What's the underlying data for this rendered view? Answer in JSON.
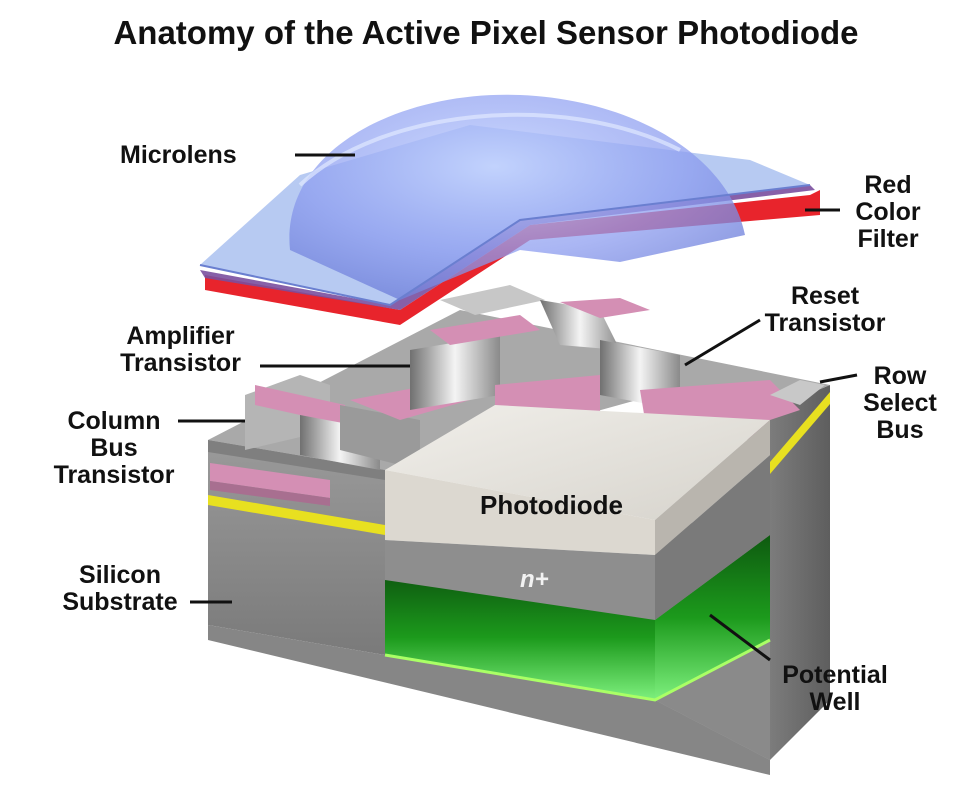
{
  "title": "Anatomy of the Active Pixel Sensor Photodiode",
  "labels": {
    "microlens": [
      "Microlens"
    ],
    "red_filter": [
      "Red",
      "Color",
      "Filter"
    ],
    "reset_transistor": [
      "Reset",
      "Transistor"
    ],
    "amplifier_transistor": [
      "Amplifier",
      "Transistor"
    ],
    "row_select_bus": [
      "Row",
      "Select",
      "Bus"
    ],
    "column_bus_transistor": [
      "Column",
      "Bus",
      "Transistor"
    ],
    "silicon_substrate": [
      "Silicon",
      "Substrate"
    ],
    "potential_well": [
      "Potential",
      "Well"
    ]
  },
  "photodiode": "Photodiode",
  "n_plus": "n+",
  "colors": {
    "substrate_front": "#8f8f8f",
    "substrate_side": "#6f6f6f",
    "top_surface": "#a8a8a8",
    "transistor_pink": "#d48fb4",
    "photodiode_top": "#e4e1db",
    "well_green": "#1fa51f",
    "red_filter": "#e8242c",
    "microlens_blue": "#8fb3ee",
    "yellow_bus": "#e8e020"
  }
}
